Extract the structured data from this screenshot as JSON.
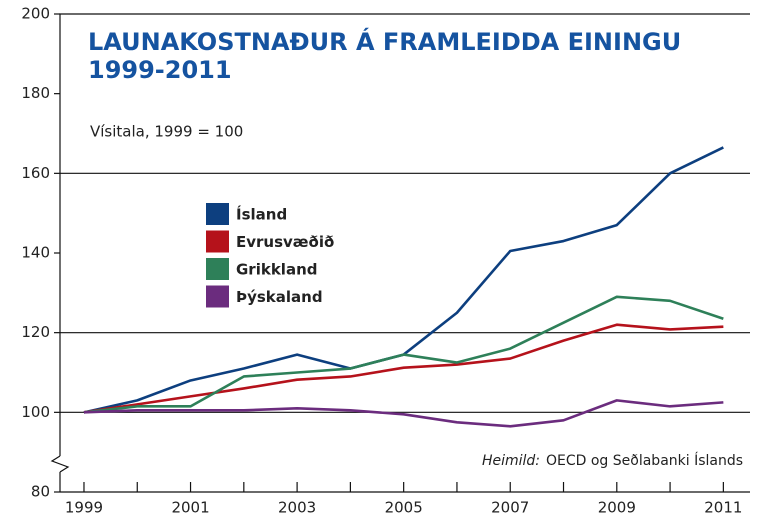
{
  "chart_data": {
    "type": "line",
    "title": [
      "LAUNAKOSTNAÐUR Á FRAMLEIDDA EININGU",
      "1999-2011"
    ],
    "subtitle": "Vísitala, 1999 = 100",
    "source_label": "Heimild:",
    "source": "OECD og Seðlabanki Íslands",
    "x": [
      1999,
      2000,
      2001,
      2002,
      2003,
      2004,
      2005,
      2006,
      2007,
      2008,
      2009,
      2010,
      2011
    ],
    "xlim": [
      1998.55,
      2011.5
    ],
    "xticks": [
      1999,
      2001,
      2003,
      2005,
      2007,
      2009,
      2011
    ],
    "xminor_ticks": [
      2000,
      2002,
      2004,
      2006,
      2008,
      2010
    ],
    "ylim": [
      80,
      200
    ],
    "yticks": [
      80,
      100,
      120,
      140,
      160,
      180,
      200
    ],
    "grid_lines": [
      100,
      120,
      160
    ],
    "series": [
      {
        "name": "Ísland",
        "color": "#0d3f7f",
        "values": [
          100,
          103,
          108,
          111,
          114.5,
          111,
          114.5,
          125,
          140.5,
          143,
          147,
          160,
          166.5
        ]
      },
      {
        "name": "Evrusvæðið",
        "color": "#b5121b",
        "values": [
          100,
          102,
          104,
          106,
          108.2,
          109,
          111.2,
          112,
          113.5,
          118,
          122,
          120.8,
          121.5
        ]
      },
      {
        "name": "Grikkland",
        "color": "#2e8059",
        "values": [
          100,
          101.5,
          101.5,
          109,
          110,
          111,
          114.5,
          112.5,
          116,
          122.5,
          129,
          128,
          123.5
        ]
      },
      {
        "name": "Þýskaland",
        "color": "#6b2c7e",
        "values": [
          100,
          100.5,
          100.5,
          100.5,
          101,
          100.5,
          99.5,
          97.5,
          96.5,
          98,
          103,
          101.5,
          102.5
        ]
      }
    ]
  }
}
